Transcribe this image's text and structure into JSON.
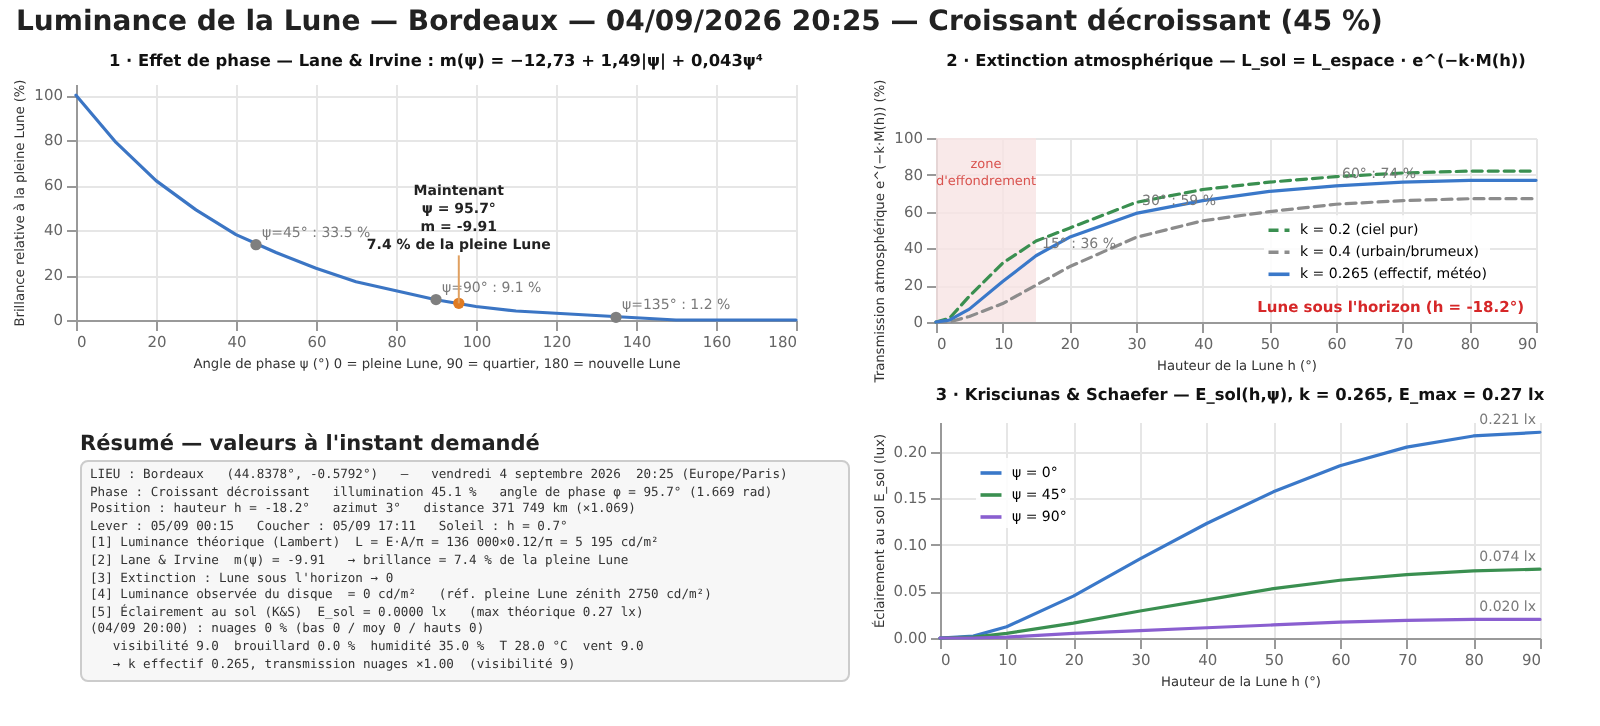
{
  "chart_data": [
    {
      "type": "line",
      "title": "Luminance de la Lune — Bordeaux — 04/09/2026 20:25 — Croissant décroissant (45 %)",
      "subtitle": "1 · Effet de phase — Lane & Irvine : m(ψ) = −12,73 + 1,49|ψ| + 0,043ψ⁴",
      "xlabel": "Angle de phase ψ (°)   0 = pleine Lune, 90 = quartier, 180 = nouvelle Lune",
      "ylabel": "Brillance relative à la pleine Lune (%)",
      "xlim": [
        0,
        180
      ],
      "xticks": [
        0,
        20,
        40,
        60,
        80,
        100,
        120,
        140,
        160,
        180
      ],
      "ylim": [
        0,
        105
      ],
      "yticks": [
        0,
        20,
        40,
        60,
        80,
        100
      ],
      "grid": true,
      "series": [
        {
          "color": "#3b75c4",
          "x": [
            0,
            10,
            20,
            30,
            40,
            50,
            60,
            70,
            80,
            90,
            100,
            110,
            120,
            130,
            140,
            150,
            160,
            170,
            180
          ],
          "values": [
            100,
            79,
            62,
            49,
            38,
            30,
            23,
            17,
            13,
            9,
            6,
            4,
            3,
            2,
            1,
            0,
            0,
            0,
            0
          ]
        },
        {
          "type": "scatter",
          "color": "#7f7f7f",
          "x": [
            45,
            90,
            135
          ],
          "values": [
            33.5,
            9.1,
            1.2
          ],
          "value_labels": [
            "ψ=45° : 33.5 %",
            "ψ=90° : 9.1 %",
            "ψ=135° : 1.2 %"
          ]
        },
        {
          "type": "scatter",
          "color": "#e07b22",
          "x": [
            95.7
          ],
          "values": [
            7.4
          ]
        }
      ],
      "annotations": [
        {
          "text": "Maintenant\nψ = 95.7°\nm = -9.91\n7.4 % de la pleine Lune",
          "x": 95.7,
          "y": 7.4
        }
      ]
    },
    {
      "type": "line",
      "title": "2 · Extinction atmosphérique — L_sol = L_espace · e^(−k·M(h))",
      "xlabel": "Hauteur de la Lune h (°)",
      "ylabel": "Transmission atmosphérique e^(−k·M(h)) (%)",
      "xlim": [
        0,
        90
      ],
      "xticks": [
        0,
        10,
        20,
        30,
        40,
        50,
        60,
        70,
        80,
        90
      ],
      "ylim": [
        0,
        100
      ],
      "yticks": [
        0,
        20,
        40,
        60,
        80,
        100
      ],
      "grid": true,
      "legend": "right",
      "x": [
        0,
        2,
        5,
        10,
        15,
        20,
        30,
        40,
        50,
        60,
        70,
        80,
        90
      ],
      "series": [
        {
          "name": "k = 0.2 (ciel pur)",
          "color": "#3a8f50",
          "line_style": "dashed",
          "values": [
            0,
            2,
            14,
            32,
            44,
            51,
            65,
            72,
            76,
            79,
            81,
            82,
            82
          ]
        },
        {
          "name": "k = 0.4 (urbain/brumeux)",
          "color": "#8c8c8c",
          "line_style": "dashed",
          "values": [
            0,
            0,
            3,
            10,
            20,
            30,
            46,
            55,
            60,
            64,
            66,
            67,
            67
          ]
        },
        {
          "name": "k = 0.265 (effectif, météo)",
          "color": "#3a78c9",
          "values": [
            0,
            1,
            7,
            22,
            36,
            46,
            59,
            66,
            71,
            74,
            76,
            77,
            77
          ],
          "value_labels": [
            null,
            null,
            null,
            null,
            "15° : 36 %",
            null,
            "30° : 59 %",
            null,
            null,
            "60° : 74 %",
            null,
            null,
            null
          ]
        }
      ],
      "bands": [
        {
          "axis": "x",
          "from": 0,
          "to": 15,
          "label": "zone\nd'effondrement",
          "color": "#f7e3e3"
        }
      ],
      "annotations": [
        "Lune sous l'horizon (h = -18.2°)"
      ]
    },
    {
      "type": "other",
      "title": "Résumé — valeurs à l'instant demandé",
      "annotations": [
        "LIEU : Bordeaux   (44.8378°, -0.5792°)   —   vendredi 4 septembre 2026  20:25 (Europe/Paris)",
        "Phase : Croissant décroissant   illumination 45.1 %   angle de phase φ = 95.7° (1.669 rad)",
        "Position : hauteur h = -18.2°   azimut 3°   distance 371 749 km (×1.069)",
        "Lever : 05/09 00:15   Coucher : 05/09 17:11   Soleil : h = 0.7°",
        "[1] Luminance théorique (Lambert)  L = E·A/π = 136 000×0.12/π = 5 195 cd/m²",
        "[2] Lane & Irvine  m(ψ) = -9.91   → brillance = 7.4 % de la pleine Lune",
        "[3] Extinction : Lune sous l'horizon → 0",
        "[4] Luminance observée du disque  = 0 cd/m²   (réf. pleine Lune zénith 2750 cd/m²)",
        "[5] Éclairement au sol (K&S)  E_sol = 0.0000 lx   (max théorique 0.27 lx)",
        "(04/09 20:00) : nuages 0 % (bas 0 / moy 0 / hauts 0)",
        "   visibilité 9.0  brouillard 0.0 %  humidité 35.0 %  T 28.0 °C  vent 9.0",
        "   → k effectif 0.265, transmission nuages ×1.00  (visibilité 9)"
      ]
    },
    {
      "type": "line",
      "title": "3 · Krisciunas & Schaefer — E_sol(h,ψ), k = 0.265, E_max = 0.27 lx",
      "xlabel": "Hauteur de la Lune h (°)",
      "ylabel": "Éclairement au sol E_sol (lux)",
      "xlim": [
        0,
        90
      ],
      "xticks": [
        0,
        10,
        20,
        30,
        40,
        50,
        60,
        70,
        80,
        90
      ],
      "ylim": [
        0,
        0.232
      ],
      "yticks": [
        {
          "value": 0,
          "label": "0.00"
        },
        {
          "value": 0.05,
          "label": "0.05"
        },
        {
          "value": 0.1,
          "label": "0.10"
        },
        {
          "value": 0.15,
          "label": "0.15"
        },
        {
          "value": 0.2,
          "label": "0.20"
        }
      ],
      "grid": true,
      "legend": "top left",
      "x": [
        0,
        5,
        10,
        20,
        30,
        40,
        50,
        60,
        70,
        80,
        90
      ],
      "series": [
        {
          "name": "ψ = 0°",
          "color": "#3a78c9",
          "values": [
            0,
            0.002,
            0.012,
            0.045,
            0.085,
            0.123,
            0.157,
            0.185,
            0.205,
            0.217,
            0.221
          ],
          "value_labels": [
            null,
            null,
            null,
            null,
            null,
            null,
            null,
            null,
            null,
            null,
            "0.221 lx"
          ]
        },
        {
          "name": "ψ = 45°",
          "color": "#3a8f50",
          "values": [
            0,
            0.001,
            0.005,
            0.016,
            0.029,
            0.041,
            0.053,
            0.062,
            0.068,
            0.072,
            0.074
          ],
          "value_labels": [
            null,
            null,
            null,
            null,
            null,
            null,
            null,
            null,
            null,
            null,
            "0.074 lx"
          ]
        },
        {
          "name": "ψ = 90°",
          "color": "#8a5fd0",
          "values": [
            0,
            0,
            0.001,
            0.005,
            0.008,
            0.011,
            0.014,
            0.017,
            0.019,
            0.02,
            0.02
          ],
          "value_labels": [
            null,
            null,
            null,
            null,
            null,
            null,
            null,
            null,
            null,
            null,
            "0.020 lx"
          ]
        }
      ]
    }
  ]
}
